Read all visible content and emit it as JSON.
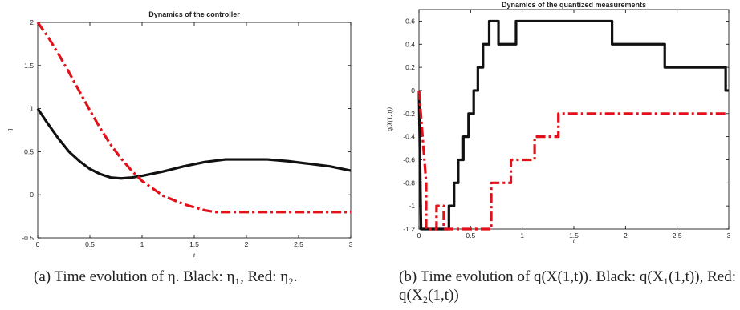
{
  "chart_data": [
    {
      "type": "line",
      "title": "Dynamics of the controller",
      "xlabel": "t",
      "ylabel": "η",
      "xlim": [
        0,
        3
      ],
      "ylim": [
        -0.5,
        2
      ],
      "xticks": [
        "0",
        "0.5",
        "1",
        "1.5",
        "2",
        "2.5",
        "3"
      ],
      "yticks": [
        "-0.5",
        "0",
        "0.5",
        "1",
        "1.5",
        "2"
      ],
      "grid": false,
      "series": [
        {
          "color": "#111111",
          "style": "solid",
          "x": [
            0,
            0.1,
            0.2,
            0.3,
            0.4,
            0.5,
            0.6,
            0.7,
            0.8,
            0.9,
            1.0,
            1.2,
            1.4,
            1.6,
            1.8,
            2.0,
            2.2,
            2.4,
            2.6,
            2.8,
            3.0
          ],
          "y": [
            1.0,
            0.82,
            0.65,
            0.5,
            0.39,
            0.3,
            0.24,
            0.2,
            0.19,
            0.2,
            0.22,
            0.27,
            0.33,
            0.38,
            0.41,
            0.41,
            0.41,
            0.39,
            0.36,
            0.33,
            0.28
          ]
        },
        {
          "color": "#e3101a",
          "style": "dashdot",
          "x": [
            0,
            0.1,
            0.2,
            0.3,
            0.4,
            0.5,
            0.6,
            0.7,
            0.8,
            0.9,
            1.0,
            1.2,
            1.4,
            1.6,
            1.7,
            2.0,
            2.5,
            3.0
          ],
          "y": [
            2.0,
            1.83,
            1.63,
            1.42,
            1.2,
            0.98,
            0.77,
            0.58,
            0.42,
            0.28,
            0.16,
            -0.01,
            -0.11,
            -0.18,
            -0.2,
            -0.2,
            -0.2,
            -0.2
          ]
        }
      ]
    },
    {
      "type": "line",
      "title": "Dynamics of the quantized measurements",
      "xlabel": "t",
      "ylabel": "q(X(1, t))",
      "xlim": [
        0,
        3
      ],
      "ylim": [
        -1.2,
        0.7
      ],
      "xticks": [
        "0",
        "0.5",
        "1",
        "1.5",
        "2",
        "2.5",
        "3"
      ],
      "yticks": [
        "-1.2",
        "-1",
        "-0.8",
        "-0.6",
        "-0.4",
        "-0.2",
        "0",
        "0.2",
        "0.4",
        "0.6"
      ],
      "grid": false,
      "series": [
        {
          "color": "#111111",
          "style": "solid",
          "x": [
            0,
            0.02,
            0.04,
            0.29,
            0.29,
            0.34,
            0.34,
            0.38,
            0.38,
            0.43,
            0.43,
            0.48,
            0.48,
            0.53,
            0.53,
            0.57,
            0.57,
            0.62,
            0.62,
            0.68,
            0.68,
            0.77,
            0.77,
            0.94,
            0.94,
            1.15,
            1.15,
            1.87,
            1.87,
            2.38,
            2.38,
            2.97,
            2.97,
            3.0
          ],
          "y": [
            0.0,
            -1.2,
            -1.2,
            -1.2,
            -1.0,
            -1.0,
            -0.8,
            -0.8,
            -0.6,
            -0.6,
            -0.4,
            -0.4,
            -0.2,
            -0.2,
            0.0,
            0.0,
            0.2,
            0.2,
            0.4,
            0.4,
            0.6,
            0.6,
            0.4,
            0.4,
            0.6,
            0.6,
            0.6,
            0.6,
            0.4,
            0.4,
            0.2,
            0.2,
            0.0,
            0.0
          ]
        },
        {
          "color": "#e3101a",
          "style": "dashdot",
          "x": [
            0,
            0.07,
            0.07,
            0.17,
            0.17,
            0.24,
            0.24,
            0.7,
            0.7,
            0.89,
            0.89,
            1.12,
            1.12,
            1.35,
            1.35,
            1.72,
            1.72,
            3.0
          ],
          "y": [
            0.0,
            -0.8,
            -1.2,
            -1.2,
            -1.0,
            -1.0,
            -1.2,
            -1.2,
            -0.8,
            -0.8,
            -0.6,
            -0.6,
            -0.4,
            -0.4,
            -0.2,
            -0.2,
            -0.2,
            -0.2
          ]
        }
      ]
    }
  ],
  "captions": {
    "a": "(a) Time evolution of η. Black: η₁, Red: η₂.",
    "b": "(b) Time evolution of q(X(1,t)). Black: q(X₁(1,t)), Red: q(X₂(1,t))"
  }
}
